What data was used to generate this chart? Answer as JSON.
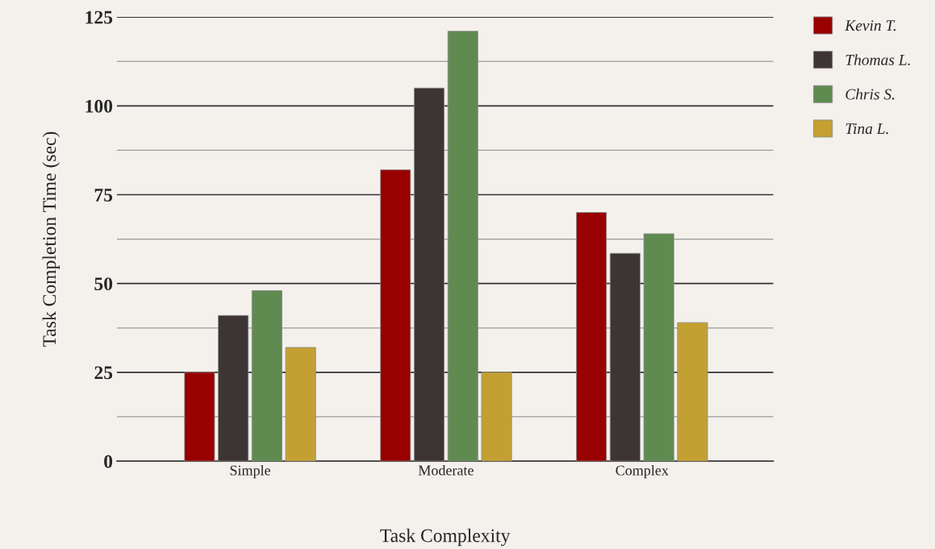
{
  "chart_data": {
    "type": "bar",
    "xlabel": "Task Complexity",
    "ylabel": "Task Completion Time (sec)",
    "categories": [
      "Simple",
      "Moderate",
      "Complex"
    ],
    "series": [
      {
        "name": "Kevin T.",
        "color": "#990000",
        "values": [
          25,
          82,
          70
        ]
      },
      {
        "name": "Thomas L.",
        "color": "#3d3533",
        "values": [
          41,
          105,
          58.5
        ]
      },
      {
        "name": "Chris S.",
        "color": "#5f8a50",
        "values": [
          48,
          121,
          64
        ]
      },
      {
        "name": "Tina L.",
        "color": "#c4a032",
        "values": [
          32,
          25,
          39
        ]
      }
    ],
    "ylim": [
      0,
      125
    ],
    "yticks": [
      0,
      {
        "value": 12.5,
        "label": null
      },
      25,
      {
        "value": 37.5,
        "label": null
      },
      50,
      {
        "value": 62.5,
        "label": null
      },
      75,
      {
        "value": 87.5,
        "label": null
      },
      100,
      {
        "value": 112.5,
        "label": null
      },
      125
    ],
    "grid": "y",
    "legend": "top right"
  }
}
